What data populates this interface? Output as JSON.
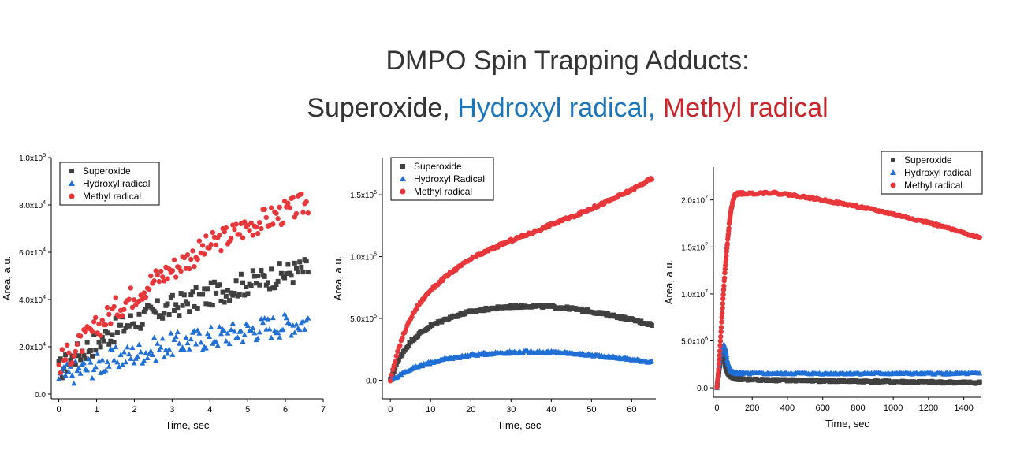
{
  "header": {
    "line1": "DMPO Spin Trapping Adducts:",
    "line2": {
      "superoxide": "Superoxide,",
      "hydroxyl": "Hydroxyl radical,",
      "methyl": "Methyl radical"
    }
  },
  "colors": {
    "superoxide": "#404040",
    "hydroxyl": "#1f6fd6",
    "methyl": "#e8373a",
    "title_superoxide": "#333333",
    "title_hydroxyl": "#1b75bb",
    "title_methyl": "#c9262c"
  },
  "chart_data": [
    {
      "type": "scatter",
      "title": "",
      "xlabel": "Time, sec",
      "ylabel": "Area, a.u.",
      "xlim": [
        -0.2,
        7
      ],
      "ylim": [
        -2000,
        100000
      ],
      "x_ticks": [
        0,
        1,
        2,
        3,
        4,
        5,
        6,
        7
      ],
      "x_tick_labels": [
        "0",
        "1",
        "2",
        "3",
        "4",
        "5",
        "6",
        "7"
      ],
      "y_ticks": [
        0,
        20000,
        40000,
        60000,
        80000,
        100000
      ],
      "y_tick_labels": [
        [
          "0.0",
          ""
        ],
        [
          "2.0x10",
          "4"
        ],
        [
          "4.0x10",
          "4"
        ],
        [
          "6.0x10",
          "4"
        ],
        [
          "8.0x10",
          "4"
        ],
        [
          "1.0x10",
          "5"
        ]
      ],
      "legend_position": "top-left",
      "grid": false,
      "series": [
        {
          "name": "Superoxide",
          "marker": "square",
          "x": [
            0,
            0.5,
            1,
            1.5,
            2,
            2.5,
            3,
            3.5,
            4,
            4.5,
            5,
            5.5,
            6,
            6.6
          ],
          "y": [
            10000,
            17000,
            22000,
            27000,
            31000,
            34000,
            37000,
            39500,
            42000,
            44500,
            47000,
            49000,
            51000,
            53000
          ]
        },
        {
          "name": "Hydroxyl radical",
          "marker": "triangle",
          "x": [
            0,
            0.5,
            1,
            1.5,
            2,
            2.5,
            3,
            3.5,
            4,
            4.5,
            5,
            5.5,
            6,
            6.6
          ],
          "y": [
            7000,
            10000,
            12500,
            15000,
            17000,
            19000,
            21000,
            22500,
            24000,
            25500,
            27000,
            28500,
            29500,
            31000
          ]
        },
        {
          "name": "Methyl radical",
          "marker": "circle",
          "x": [
            0,
            0.5,
            1,
            1.5,
            2,
            2.5,
            3,
            3.5,
            4,
            4.5,
            5,
            5.5,
            6,
            6.6
          ],
          "y": [
            13000,
            20000,
            28000,
            36000,
            42000,
            48000,
            53000,
            58000,
            63000,
            67000,
            71000,
            74000,
            77000,
            81000
          ]
        }
      ]
    },
    {
      "type": "scatter",
      "title": "",
      "xlabel": "Time, sec",
      "ylabel": "Area, a.u.",
      "xlim": [
        -2,
        66
      ],
      "ylim": [
        -150000,
        1800000
      ],
      "x_ticks": [
        0,
        10,
        20,
        30,
        40,
        50,
        60
      ],
      "x_tick_labels": [
        "0",
        "10",
        "20",
        "30",
        "40",
        "50",
        "60"
      ],
      "y_ticks": [
        0,
        500000,
        1000000,
        1500000
      ],
      "y_tick_labels": [
        [
          "0.0",
          ""
        ],
        [
          "5.0x10",
          "5"
        ],
        [
          "1.0x10",
          "6"
        ],
        [
          "1.5x10",
          "6"
        ]
      ],
      "legend_position": "top-left",
      "grid": false,
      "series": [
        {
          "name": "Superoxide",
          "marker": "square",
          "x": [
            0,
            1,
            2,
            3,
            5,
            7,
            10,
            15,
            20,
            25,
            30,
            35,
            40,
            45,
            50,
            55,
            60,
            65
          ],
          "y": [
            0,
            90000,
            160000,
            220000,
            310000,
            370000,
            440000,
            510000,
            555000,
            580000,
            595000,
            600000,
            595000,
            580000,
            555000,
            525000,
            490000,
            450000
          ]
        },
        {
          "name": "Hydroxyl Radical",
          "marker": "triangle",
          "x": [
            0,
            1,
            2,
            3,
            5,
            7,
            10,
            15,
            20,
            25,
            30,
            35,
            40,
            45,
            50,
            55,
            60,
            65
          ],
          "y": [
            0,
            20000,
            40000,
            60000,
            90000,
            115000,
            145000,
            180000,
            205000,
            220000,
            228000,
            230000,
            228000,
            220000,
            205000,
            190000,
            170000,
            150000
          ]
        },
        {
          "name": "Methyl radical",
          "marker": "circle",
          "x": [
            0,
            1,
            2,
            3,
            5,
            7,
            10,
            15,
            20,
            25,
            30,
            35,
            40,
            45,
            50,
            55,
            60,
            65
          ],
          "y": [
            0,
            130000,
            250000,
            350000,
            500000,
            610000,
            730000,
            870000,
            980000,
            1060000,
            1130000,
            1190000,
            1260000,
            1320000,
            1390000,
            1460000,
            1540000,
            1630000
          ]
        }
      ]
    },
    {
      "type": "scatter",
      "title": "",
      "xlabel": "Time, sec",
      "ylabel": "Area, a.u.",
      "xlim": [
        -20,
        1500
      ],
      "ylim": [
        -1000000,
        23500000
      ],
      "x_ticks": [
        0,
        200,
        400,
        600,
        800,
        1000,
        1200,
        1400
      ],
      "x_tick_labels": [
        "0",
        "200",
        "400",
        "600",
        "800",
        "1000",
        "1200",
        "1400"
      ],
      "y_ticks": [
        0,
        5000000,
        10000000,
        15000000,
        20000000
      ],
      "y_tick_labels": [
        [
          "0.0",
          ""
        ],
        [
          "5.0x10",
          "6"
        ],
        [
          "1.0x10",
          "7"
        ],
        [
          "1.5x10",
          "7"
        ],
        [
          "2.0x10",
          "7"
        ]
      ],
      "legend_position": "top-right",
      "grid": false,
      "series": [
        {
          "name": "Superoxide",
          "marker": "square",
          "x": [
            0,
            10,
            20,
            30,
            40,
            50,
            60,
            80,
            100,
            150,
            200,
            400,
            600,
            800,
            1000,
            1200,
            1490
          ],
          "y": [
            0,
            1500000,
            3000000,
            3800000,
            3200000,
            2200000,
            1600000,
            1200000,
            1000000,
            900000,
            850000,
            800000,
            750000,
            700000,
            650000,
            600000,
            550000
          ]
        },
        {
          "name": "Hydroxyl radical",
          "marker": "triangle",
          "x": [
            0,
            10,
            20,
            30,
            40,
            50,
            60,
            80,
            100,
            150,
            200,
            400,
            600,
            800,
            1000,
            1200,
            1490
          ],
          "y": [
            0,
            2000000,
            3500000,
            4300000,
            4600000,
            4000000,
            2800000,
            1800000,
            1600000,
            1550000,
            1550000,
            1550000,
            1550000,
            1550000,
            1550000,
            1550000,
            1550000
          ]
        },
        {
          "name": "Methyl radical",
          "marker": "circle",
          "x": [
            0,
            10,
            20,
            30,
            40,
            50,
            60,
            70,
            80,
            100,
            120,
            150,
            200,
            300,
            400,
            600,
            800,
            1000,
            1200,
            1400,
            1490
          ],
          "y": [
            0,
            2000000,
            5000000,
            8000000,
            11000000,
            13500000,
            15500000,
            17500000,
            19000000,
            20500000,
            20700000,
            20700000,
            20700000,
            20800000,
            20600000,
            20000000,
            19300000,
            18500000,
            17600000,
            16500000,
            16000000
          ]
        }
      ]
    }
  ]
}
